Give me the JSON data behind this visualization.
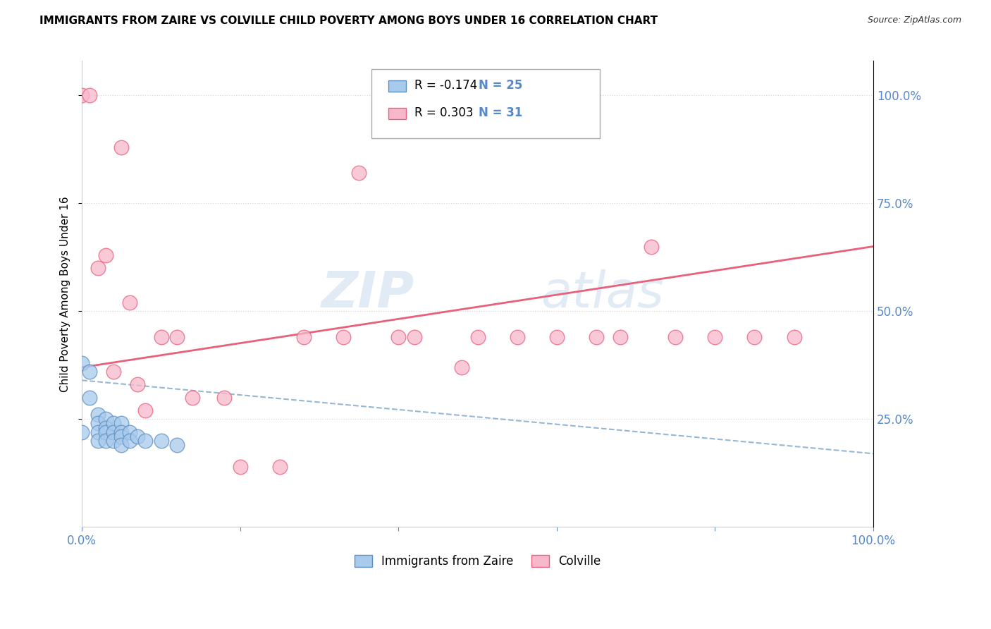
{
  "title": "IMMIGRANTS FROM ZAIRE VS COLVILLE CHILD POVERTY AMONG BOYS UNDER 16 CORRELATION CHART",
  "source": "Source: ZipAtlas.com",
  "ylabel": "Child Poverty Among Boys Under 16",
  "watermark_zip": "ZIP",
  "watermark_atlas": "atlas",
  "legend1_label": "Immigrants from Zaire",
  "legend2_label": "Colville",
  "R1": -0.174,
  "N1": 25,
  "R2": 0.303,
  "N2": 31,
  "color_blue": "#A8CAED",
  "color_pink": "#F7B8CC",
  "line_blue": "#5B8FBF",
  "line_pink": "#E8607A",
  "trend_blue": "#8AAFD0",
  "trend_pink": "#E8607A",
  "zaire_x": [
    0.0,
    0.0,
    0.001,
    0.001,
    0.002,
    0.002,
    0.002,
    0.002,
    0.003,
    0.003,
    0.003,
    0.003,
    0.004,
    0.004,
    0.004,
    0.005,
    0.005,
    0.005,
    0.005,
    0.006,
    0.006,
    0.007,
    0.008,
    0.01,
    0.012
  ],
  "zaire_y": [
    0.38,
    0.22,
    0.36,
    0.3,
    0.26,
    0.24,
    0.22,
    0.2,
    0.25,
    0.23,
    0.22,
    0.2,
    0.24,
    0.22,
    0.2,
    0.24,
    0.22,
    0.21,
    0.19,
    0.22,
    0.2,
    0.21,
    0.2,
    0.2,
    0.19
  ],
  "colville_x": [
    0.0,
    0.001,
    0.002,
    0.003,
    0.004,
    0.005,
    0.006,
    0.007,
    0.008,
    0.01,
    0.012,
    0.014,
    0.018,
    0.02,
    0.025,
    0.028,
    0.033,
    0.035,
    0.04,
    0.042,
    0.048,
    0.05,
    0.055,
    0.06,
    0.065,
    0.068,
    0.072,
    0.075,
    0.08,
    0.085,
    0.09
  ],
  "colville_y": [
    1.0,
    1.0,
    0.6,
    0.63,
    0.36,
    0.88,
    0.52,
    0.33,
    0.27,
    0.44,
    0.44,
    0.3,
    0.3,
    0.14,
    0.14,
    0.44,
    0.44,
    0.82,
    0.44,
    0.44,
    0.37,
    0.44,
    0.44,
    0.44,
    0.44,
    0.44,
    0.65,
    0.44,
    0.44,
    0.44,
    0.44
  ],
  "xlim": [
    0.0,
    0.1
  ],
  "ylim": [
    0.0,
    1.08
  ],
  "xticks": [
    0.0,
    0.02,
    0.04,
    0.06,
    0.08,
    0.1
  ],
  "yticks": [
    0.25,
    0.5,
    0.75,
    1.0
  ],
  "grid_color": "#D8D8D8",
  "title_fontsize": 11,
  "axis_color": "#5588CC"
}
